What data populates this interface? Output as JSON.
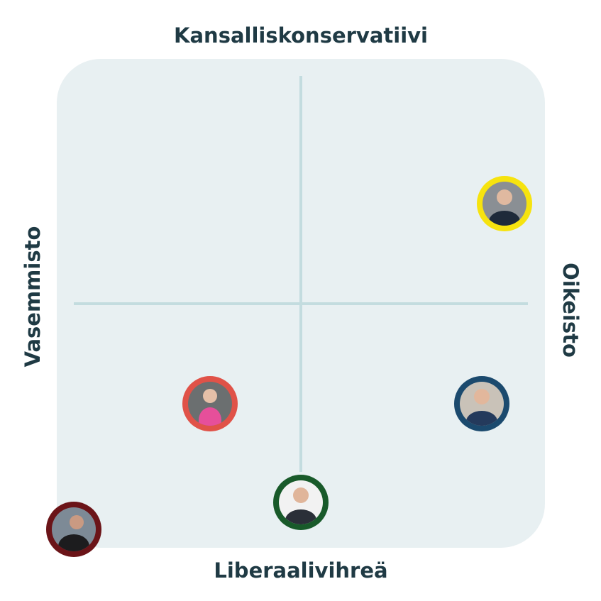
{
  "labels": {
    "top": "Kansalliskonservatiivi",
    "bottom": "Liberaalivihreä",
    "left": "Vasemmisto",
    "right": "Oikeisto"
  }
}
